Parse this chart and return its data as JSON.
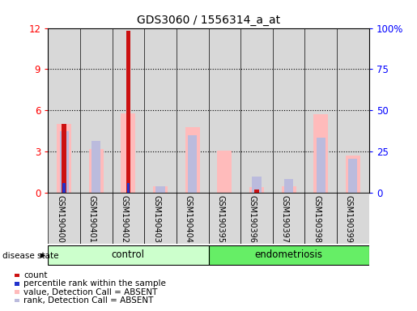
{
  "title": "GDS3060 / 1556314_a_at",
  "samples": [
    "GSM190400",
    "GSM190401",
    "GSM190402",
    "GSM190403",
    "GSM190404",
    "GSM190395",
    "GSM190396",
    "GSM190397",
    "GSM190398",
    "GSM190399"
  ],
  "groups": {
    "control": [
      "GSM190400",
      "GSM190401",
      "GSM190402",
      "GSM190403",
      "GSM190404"
    ],
    "endometriosis": [
      "GSM190395",
      "GSM190396",
      "GSM190397",
      "GSM190398",
      "GSM190399"
    ]
  },
  "count_values": [
    5.0,
    0.0,
    11.8,
    0.0,
    0.0,
    0.0,
    0.25,
    0.0,
    0.0,
    0.0
  ],
  "percentile_values": [
    5.7,
    0.0,
    5.8,
    0.0,
    0.0,
    0.0,
    0.0,
    0.0,
    0.0,
    0.0
  ],
  "absent_value_values": [
    5.0,
    3.2,
    5.8,
    0.5,
    4.8,
    3.1,
    0.4,
    0.5,
    5.7,
    2.7
  ],
  "absent_rank_values": [
    4.5,
    3.8,
    0.0,
    0.5,
    4.2,
    0.0,
    1.2,
    1.0,
    4.0,
    2.5
  ],
  "left_ylim": [
    0,
    12
  ],
  "right_ylim": [
    0,
    100
  ],
  "left_yticks": [
    0,
    3,
    6,
    9,
    12
  ],
  "right_yticks": [
    0,
    25,
    50,
    75,
    100
  ],
  "right_yticklabels": [
    "0",
    "25",
    "50",
    "75",
    "100%"
  ],
  "color_count": "#cc1111",
  "color_percentile": "#2233cc",
  "color_absent_value": "#ffbbbb",
  "color_absent_rank": "#bbbbdd",
  "col_bg_color": "#d8d8d8",
  "control_color": "#ccffcc",
  "endometriosis_color": "#66ee66",
  "disease_label": "disease state"
}
